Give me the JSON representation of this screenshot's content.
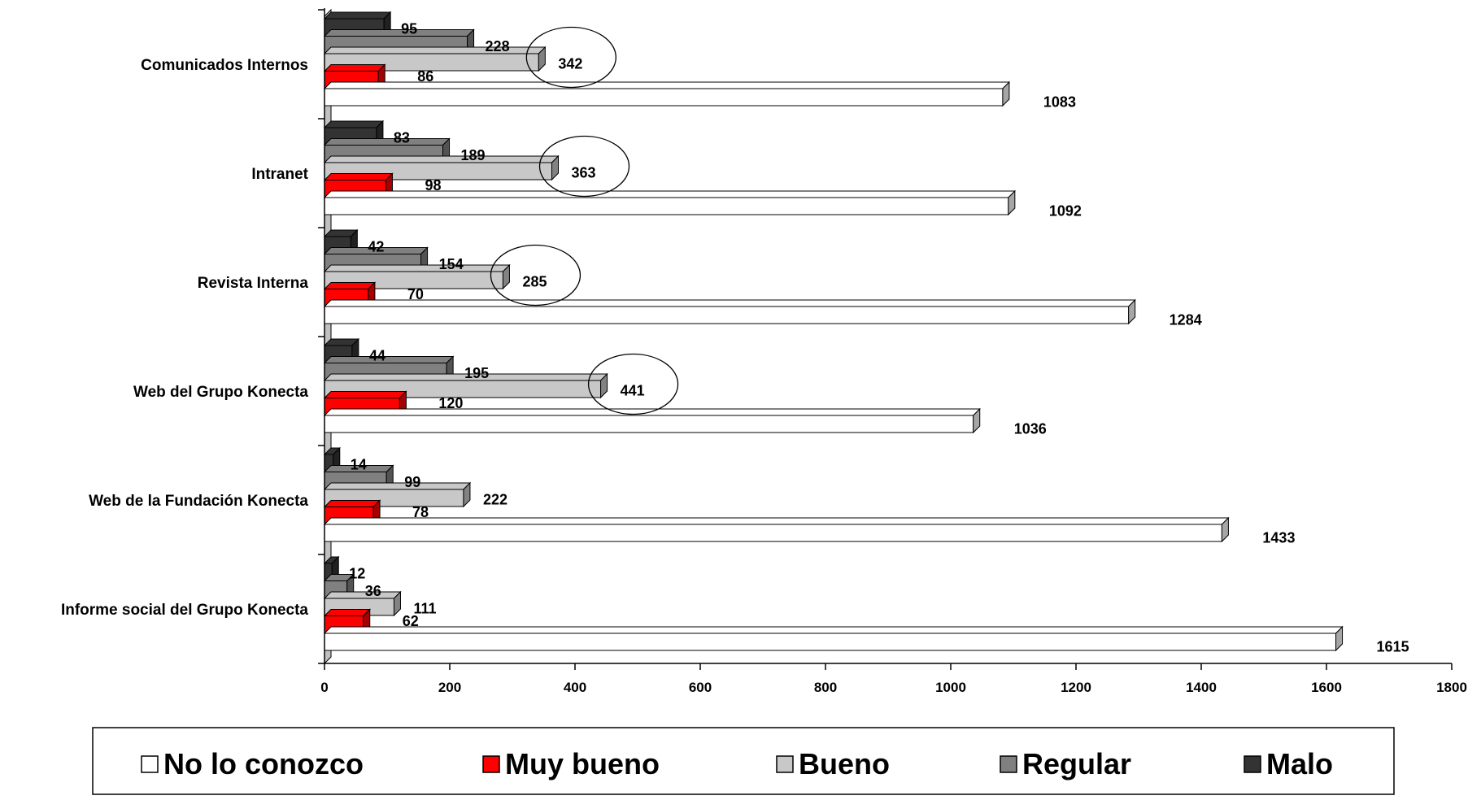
{
  "chart_data": {
    "type": "bar",
    "orientation": "horizontal",
    "categories": [
      "Comunicados Internos",
      "Intranet",
      "Revista Interna",
      "Web del Grupo Konecta",
      "Web de la Fundación Konecta",
      "Informe social del Grupo Konecta"
    ],
    "series": [
      {
        "name": "Malo",
        "color": "#333333",
        "values": [
          95,
          83,
          42,
          44,
          14,
          12
        ]
      },
      {
        "name": "Regular",
        "color": "#808080",
        "values": [
          228,
          189,
          154,
          195,
          99,
          36
        ]
      },
      {
        "name": "Bueno",
        "color": "#c8c8c8",
        "values": [
          342,
          363,
          285,
          441,
          222,
          111
        ]
      },
      {
        "name": "Muy bueno",
        "color": "#ff0000",
        "values": [
          86,
          98,
          70,
          120,
          78,
          62
        ]
      },
      {
        "name": "No lo conozco",
        "color": "#ffffff",
        "values": [
          1083,
          1092,
          1284,
          1036,
          1433,
          1615
        ]
      }
    ],
    "legend_order": [
      "No lo conozco",
      "Muy bueno",
      "Bueno",
      "Regular",
      "Malo"
    ],
    "legend_position": "bottom",
    "xlim": [
      0,
      1800
    ],
    "xticks": [
      "0",
      "200",
      "400",
      "600",
      "800",
      "1000",
      "1200",
      "1400",
      "1600",
      "1800"
    ],
    "title": "",
    "xlabel": "",
    "ylabel": "",
    "grid": false,
    "highlighted_series": "Bueno",
    "highlighted_categories": [
      "Comunicados Internos",
      "Intranet",
      "Revista Interna",
      "Web del Grupo Konecta"
    ]
  }
}
